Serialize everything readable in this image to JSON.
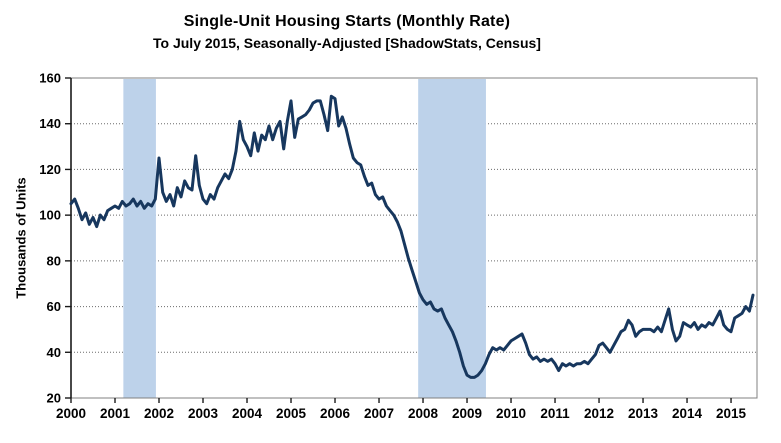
{
  "header": {
    "title": "Single-Unit Housing Starts (Monthly Rate)",
    "subtitle": "To July 2015, Seasonally-Adjusted [ShadowStats, Census]"
  },
  "chart_data": {
    "type": "line",
    "title": "Single-Unit Housing Starts (Monthly Rate)",
    "subtitle": "To July 2015, Seasonally-Adjusted [ShadowStats, Census]",
    "ylabel": "Thousands of Units",
    "xlabel": "",
    "ylim": [
      20,
      160
    ],
    "ytick_step": 20,
    "y_ticks": [
      "20",
      "40",
      "60",
      "80",
      "100",
      "120",
      "140",
      "160"
    ],
    "xlim": [
      2000,
      2015.59
    ],
    "x_ticks": [
      "2000",
      "2001",
      "2002",
      "2003",
      "2004",
      "2005",
      "2006",
      "2007",
      "2008",
      "2009",
      "2010",
      "2011",
      "2012",
      "2013",
      "2014",
      "2015"
    ],
    "grid": "horizontal-dotted",
    "legend_position": "none",
    "series": [
      {
        "name": "single-unit-housing-starts",
        "frequency": "monthly",
        "start_month": "2000-01",
        "end_month": "2015-07",
        "unit": "thousands of units per month",
        "values": [
          105,
          107,
          103,
          98,
          101,
          96,
          99,
          95,
          100,
          98,
          102,
          103,
          104,
          103,
          106,
          104,
          105,
          107,
          104,
          106,
          103,
          105,
          104,
          107,
          125,
          110,
          106,
          109,
          104,
          112,
          108,
          115,
          112,
          111,
          126,
          113,
          107,
          105,
          109,
          107,
          112,
          115,
          118,
          116,
          120,
          128,
          141,
          133,
          130,
          126,
          136,
          128,
          135,
          133,
          139,
          133,
          138,
          141,
          129,
          141,
          150,
          134,
          142,
          143,
          144,
          146,
          149,
          150,
          150,
          144,
          137,
          152,
          151,
          139,
          143,
          138,
          131,
          125,
          123,
          122,
          117,
          113,
          114,
          109,
          107,
          108,
          104,
          102,
          100,
          97,
          93,
          87,
          81,
          76,
          71,
          66,
          63,
          61,
          62,
          59,
          58,
          59,
          55,
          52,
          49,
          45,
          40,
          34,
          30,
          29,
          29,
          30,
          32,
          35,
          39,
          42,
          41,
          42,
          41,
          43,
          45,
          46,
          47,
          48,
          44,
          39,
          37,
          38,
          36,
          37,
          36,
          37,
          35,
          32,
          35,
          34,
          35,
          34,
          35,
          35,
          36,
          35,
          37,
          39,
          43,
          44,
          42,
          40,
          43,
          46,
          49,
          50,
          54,
          52,
          47,
          49,
          50,
          50,
          50,
          49,
          51,
          49,
          54,
          59,
          50,
          45,
          47,
          53,
          52,
          51,
          53,
          50,
          52,
          51,
          53,
          52,
          55,
          58,
          52,
          50,
          49,
          55,
          56,
          57,
          60,
          58,
          65
        ]
      }
    ],
    "recession_bands": [
      {
        "from": 2001.19,
        "to": 2001.93
      },
      {
        "from": 2007.89,
        "to": 2009.43
      }
    ],
    "colors": {
      "line": "#17375E",
      "band": "#BDD2EA",
      "grid": "#6b6b6b",
      "axis": "#808080",
      "axis_left": "#1a1a1a",
      "text": "#000000"
    }
  }
}
